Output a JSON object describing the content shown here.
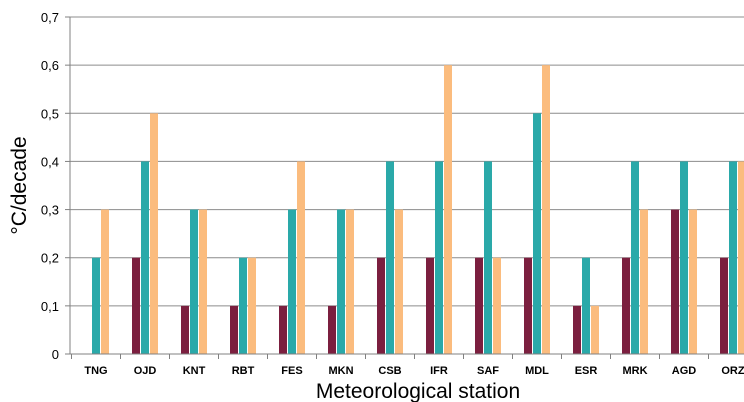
{
  "chart_data": {
    "type": "bar",
    "title": "",
    "xlabel": "Meteorological station",
    "ylabel": "°C/decade",
    "ylim": [
      0,
      0.7
    ],
    "yticks": [
      "0",
      "0,1",
      "0,2",
      "0,3",
      "0,4",
      "0,5",
      "0,6",
      "0,7"
    ],
    "ytick_values": [
      0,
      0.1,
      0.2,
      0.3,
      0.4,
      0.5,
      0.6,
      0.7
    ],
    "grid": true,
    "legend": "none",
    "categories": [
      "TNG",
      "OJD",
      "KNT",
      "RBT",
      "FES",
      "MKN",
      "CSB",
      "IFR",
      "SAF",
      "MDL",
      "ESR",
      "MRK",
      "AGD",
      "ORZ"
    ],
    "series": [
      {
        "color": "#7b1f3f",
        "values": [
          0,
          0.2,
          0.1,
          0.1,
          0.1,
          0.1,
          0.2,
          0.2,
          0.2,
          0.2,
          0.1,
          0.2,
          0.3,
          0.2
        ]
      },
      {
        "color": "#2aa9a9",
        "values": [
          0.2,
          0.4,
          0.3,
          0.2,
          0.3,
          0.3,
          0.4,
          0.4,
          0.4,
          0.5,
          0.2,
          0.4,
          0.4,
          0.4
        ]
      },
      {
        "color": "#fbbc7e",
        "values": [
          0.3,
          0.5,
          0.3,
          0.2,
          0.4,
          0.3,
          0.3,
          0.6,
          0.2,
          0.6,
          0.1,
          0.3,
          0.3,
          0.4
        ]
      }
    ]
  }
}
